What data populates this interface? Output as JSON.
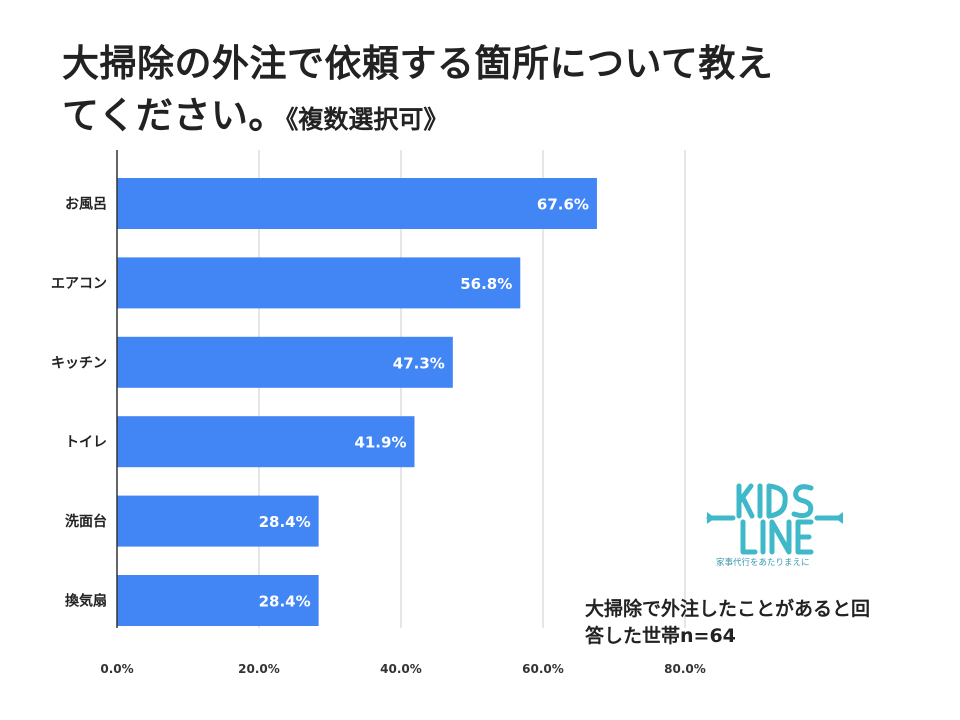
{
  "title": {
    "line1": "大掃除の外注で依頼する箇所について教え",
    "line2": "てください。",
    "suffix": "《複数選択可》"
  },
  "note": {
    "line1": "大掃除で外注したことがあると回",
    "line2": "答した世帯n=64"
  },
  "logo": {
    "text": "KIDS LINE",
    "tagline": "家事代行をあたりまえに"
  },
  "colors": {
    "bar": "#4285f4",
    "grid": "#cccccc",
    "axis": "#333333",
    "logo": "#3fb8c9"
  },
  "chart_data": {
    "type": "bar",
    "orientation": "horizontal",
    "categories": [
      "お風呂",
      "エアコン",
      "キッチン",
      "トイレ",
      "洗面台",
      "換気扇"
    ],
    "values": [
      67.6,
      56.8,
      47.3,
      41.9,
      28.4,
      28.4
    ],
    "data_labels": [
      "67.6%",
      "56.8%",
      "47.3%",
      "41.9%",
      "28.4%",
      "28.4%"
    ],
    "xlim": [
      0,
      80
    ],
    "xticks": [
      0,
      20,
      40,
      60,
      80
    ],
    "xtick_labels": [
      "0.0%",
      "20.0%",
      "40.0%",
      "60.0%",
      "80.0%"
    ],
    "grid": true,
    "legend": "none"
  }
}
